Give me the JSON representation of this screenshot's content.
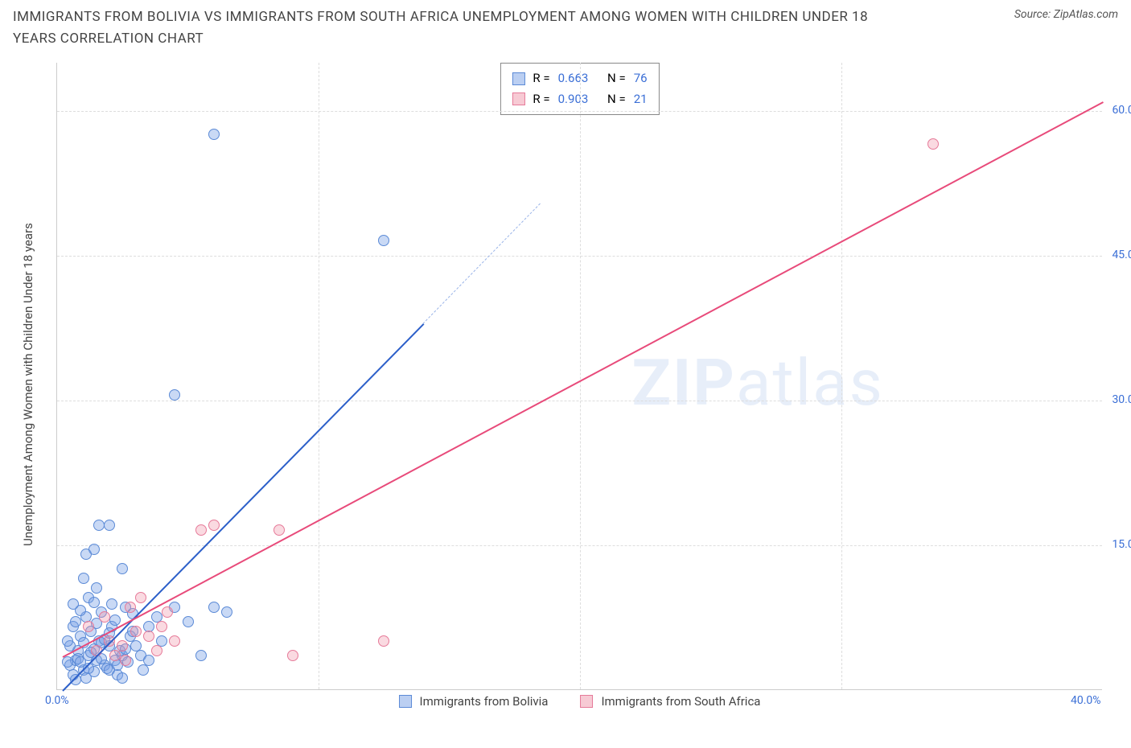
{
  "title": "IMMIGRANTS FROM BOLIVIA VS IMMIGRANTS FROM SOUTH AFRICA UNEMPLOYMENT AMONG WOMEN WITH CHILDREN UNDER 18 YEARS CORRELATION CHART",
  "source_prefix": "Source: ",
  "source_name": "ZipAtlas.com",
  "y_axis_label": "Unemployment Among Women with Children Under 18 years",
  "watermark_a": "ZIP",
  "watermark_b": "atlas",
  "chart": {
    "type": "scatter",
    "xlim": [
      0,
      40
    ],
    "ylim": [
      0,
      65
    ],
    "xtick": {
      "pos": 0,
      "label": "0.0%"
    },
    "xtick_last": {
      "pos": 40,
      "label": "40.0%"
    },
    "xtick_minor": [
      10,
      20,
      30
    ],
    "yticks": [
      {
        "pos": 15,
        "label": "15.0%"
      },
      {
        "pos": 30,
        "label": "30.0%"
      },
      {
        "pos": 45,
        "label": "45.0%"
      },
      {
        "pos": 60,
        "label": "60.0%"
      }
    ],
    "grid_color": "#dddddd",
    "background": "#ffffff",
    "series": [
      {
        "name": "Immigrants from Bolivia",
        "color_fill": "rgba(120,160,230,0.4)",
        "color_stroke": "#5b8ad6",
        "trend_color": "#2c5fc9",
        "R": "0.663",
        "N": "76",
        "trend": {
          "x1": 0.2,
          "y1": 0,
          "x2": 14,
          "y2": 38,
          "extend_to_x": 18.5,
          "extend_to_y": 50.5
        },
        "points": [
          [
            0.5,
            2.5
          ],
          [
            0.7,
            3.0
          ],
          [
            1.0,
            2.0
          ],
          [
            1.2,
            3.5
          ],
          [
            0.8,
            4.0
          ],
          [
            1.5,
            3.0
          ],
          [
            0.6,
            1.5
          ],
          [
            1.8,
            2.5
          ],
          [
            2.0,
            4.5
          ],
          [
            2.2,
            3.0
          ],
          [
            0.9,
            5.5
          ],
          [
            1.3,
            6.0
          ],
          [
            1.6,
            5.0
          ],
          [
            2.5,
            3.5
          ],
          [
            0.4,
            2.8
          ],
          [
            1.1,
            7.5
          ],
          [
            1.4,
            4.2
          ],
          [
            2.8,
            5.5
          ],
          [
            1.7,
            8.0
          ],
          [
            2.1,
            6.5
          ],
          [
            0.7,
            1.0
          ],
          [
            1.9,
            2.2
          ],
          [
            2.4,
            4.0
          ],
          [
            3.0,
            4.5
          ],
          [
            1.2,
            9.5
          ],
          [
            2.6,
            8.5
          ],
          [
            1.5,
            10.5
          ],
          [
            1.0,
            11.5
          ],
          [
            1.3,
            3.8
          ],
          [
            2.0,
            2.0
          ],
          [
            2.3,
            1.5
          ],
          [
            2.7,
            2.8
          ],
          [
            3.2,
            3.5
          ],
          [
            3.5,
            3.0
          ],
          [
            0.6,
            6.5
          ],
          [
            0.9,
            8.2
          ],
          [
            1.4,
            1.8
          ],
          [
            1.7,
            4.8
          ],
          [
            2.2,
            7.2
          ],
          [
            2.5,
            1.2
          ],
          [
            2.9,
            6.0
          ],
          [
            3.3,
            2.0
          ],
          [
            1.1,
            14.0
          ],
          [
            1.4,
            14.5
          ],
          [
            1.6,
            17.0
          ],
          [
            2.5,
            12.5
          ],
          [
            2.0,
            17.0
          ],
          [
            4.5,
            8.5
          ],
          [
            5.0,
            7.0
          ],
          [
            6.0,
            8.5
          ],
          [
            6.5,
            8.0
          ],
          [
            5.5,
            3.5
          ],
          [
            4.0,
            5.0
          ],
          [
            3.8,
            7.5
          ],
          [
            4.5,
            30.5
          ],
          [
            6.0,
            57.5
          ],
          [
            12.5,
            46.5
          ],
          [
            3.5,
            6.5
          ],
          [
            0.8,
            3.2
          ],
          [
            1.0,
            4.8
          ],
          [
            1.2,
            2.2
          ],
          [
            1.5,
            6.8
          ],
          [
            1.8,
            5.2
          ],
          [
            2.1,
            8.8
          ],
          [
            0.5,
            4.5
          ],
          [
            0.7,
            7.0
          ],
          [
            1.1,
            1.2
          ],
          [
            1.4,
            9.0
          ],
          [
            1.7,
            3.2
          ],
          [
            2.0,
            5.8
          ],
          [
            2.3,
            2.5
          ],
          [
            2.6,
            4.2
          ],
          [
            2.9,
            7.8
          ],
          [
            0.4,
            5.0
          ],
          [
            0.6,
            8.8
          ],
          [
            0.9,
            2.8
          ]
        ]
      },
      {
        "name": "Immigrants from South Africa",
        "color_fill": "rgba(240,150,170,0.35)",
        "color_stroke": "#e67a99",
        "trend_color": "#e84a7a",
        "R": "0.903",
        "N": "21",
        "trend": {
          "x1": 0.2,
          "y1": 3.5,
          "x2": 40,
          "y2": 61
        },
        "points": [
          [
            1.5,
            4.0
          ],
          [
            2.0,
            5.0
          ],
          [
            2.5,
            4.5
          ],
          [
            3.0,
            6.0
          ],
          [
            1.8,
            7.5
          ],
          [
            2.8,
            8.5
          ],
          [
            3.5,
            5.5
          ],
          [
            4.0,
            6.5
          ],
          [
            3.2,
            9.5
          ],
          [
            4.5,
            5.0
          ],
          [
            5.5,
            16.5
          ],
          [
            6.0,
            17.0
          ],
          [
            8.5,
            16.5
          ],
          [
            9.0,
            3.5
          ],
          [
            12.5,
            5.0
          ],
          [
            2.2,
            3.5
          ],
          [
            1.2,
            6.5
          ],
          [
            3.8,
            4.0
          ],
          [
            4.2,
            8.0
          ],
          [
            2.6,
            3.0
          ],
          [
            33.5,
            56.5
          ]
        ]
      }
    ]
  },
  "legend": {
    "series1": "Immigrants from Bolivia",
    "series2": "Immigrants from South Africa"
  },
  "stats_labels": {
    "R": "R =",
    "N": "N ="
  }
}
